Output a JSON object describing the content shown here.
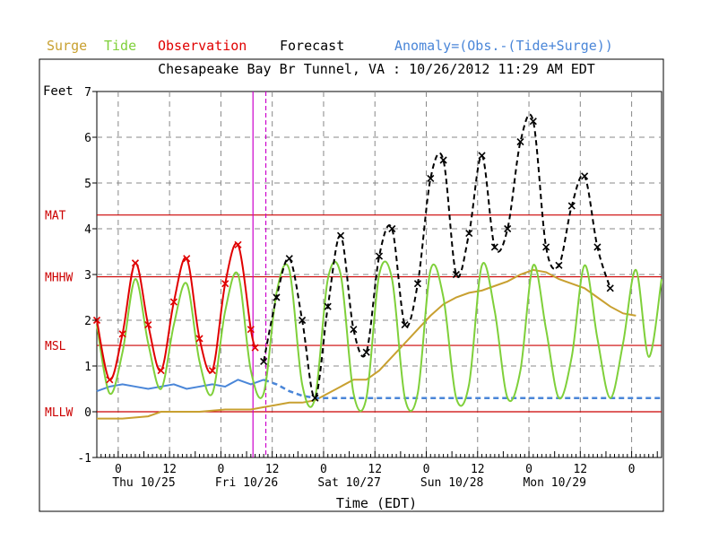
{
  "legend": {
    "surge": "Surge",
    "tide": "Tide",
    "observation": "Observation",
    "forecast": "Forecast",
    "anomaly": "Anomaly=(Obs.-(Tide+Surge))"
  },
  "colors": {
    "surge": "#c8a030",
    "tide": "#7fd03a",
    "observation": "#e00000",
    "forecast": "#000000",
    "anomaly": "#4a86d8",
    "datum": "#cc0000",
    "marker": "#cc00cc"
  },
  "chart_data": {
    "type": "line",
    "title": "Chesapeake Bay Br Tunnel, VA : 10/26/2012 11:29 AM EDT",
    "xlabel": "Time (EDT)",
    "ylabel": "Feet",
    "ylim": [
      -1,
      7
    ],
    "xlim_hours": [
      0,
      132
    ],
    "y_ticks": [
      -1,
      0,
      1,
      2,
      3,
      4,
      5,
      6,
      7
    ],
    "x_tick_labels": [
      {
        "h": 5,
        "label": "0"
      },
      {
        "h": 17,
        "label": "12"
      },
      {
        "h": 29,
        "label": "0"
      },
      {
        "h": 41,
        "label": "12"
      },
      {
        "h": 53,
        "label": "0"
      },
      {
        "h": 65,
        "label": "12"
      },
      {
        "h": 77,
        "label": "0"
      },
      {
        "h": 89,
        "label": "12"
      },
      {
        "h": 101,
        "label": "0"
      },
      {
        "h": 113,
        "label": "12"
      },
      {
        "h": 125,
        "label": "0"
      }
    ],
    "day_labels": [
      {
        "h": 11,
        "label": "Thu 10/25"
      },
      {
        "h": 35,
        "label": "Fri 10/26"
      },
      {
        "h": 59,
        "label": "Sat 10/27"
      },
      {
        "h": 83,
        "label": "Sun 10/28"
      },
      {
        "h": 107,
        "label": "Mon 10/29"
      }
    ],
    "datums": [
      {
        "name": "MAT",
        "value": 4.3
      },
      {
        "name": "MHHW",
        "value": 2.95
      },
      {
        "name": "MSL",
        "value": 1.45
      },
      {
        "name": "MLLW",
        "value": 0.0
      }
    ],
    "now_markers_h": [
      36.5,
      39.5
    ],
    "series": [
      {
        "name": "Tide",
        "x": [
          0,
          3,
          6,
          9,
          12,
          15,
          18,
          21,
          24,
          27,
          30,
          33,
          36,
          39,
          42,
          45,
          48,
          51,
          54,
          57,
          60,
          63,
          66,
          69,
          72,
          75,
          78,
          81,
          84,
          87,
          90,
          93,
          96,
          99,
          102,
          105,
          108,
          111,
          114,
          117,
          120,
          123,
          126,
          129,
          132
        ],
        "y": [
          1.9,
          0.4,
          1.3,
          2.9,
          1.5,
          0.5,
          1.9,
          2.8,
          1.1,
          0.4,
          2.2,
          3.0,
          0.9,
          0.4,
          2.6,
          3.1,
          0.6,
          0.3,
          2.9,
          3.0,
          0.4,
          0.3,
          3.0,
          2.9,
          0.3,
          0.4,
          3.1,
          2.5,
          0.3,
          0.6,
          3.2,
          2.2,
          0.3,
          0.9,
          3.2,
          1.8,
          0.3,
          1.2,
          3.2,
          1.6,
          0.3,
          1.5,
          3.1,
          1.2,
          2.9
        ]
      },
      {
        "name": "Observation",
        "x": [
          0,
          3,
          6,
          9,
          12,
          15,
          18,
          21,
          24,
          27,
          30,
          33,
          36,
          37
        ],
        "y": [
          2.0,
          0.7,
          1.7,
          3.25,
          1.9,
          0.9,
          2.4,
          3.35,
          1.6,
          0.9,
          2.8,
          3.65,
          1.8,
          1.4
        ]
      },
      {
        "name": "Forecast",
        "x": [
          39,
          42,
          45,
          48,
          51,
          54,
          57,
          60,
          63,
          66,
          69,
          72,
          75,
          78,
          81,
          84,
          87,
          90,
          93,
          96,
          99,
          102,
          105,
          108,
          111,
          114,
          117,
          120,
          123,
          126
        ],
        "y": [
          1.1,
          2.5,
          3.35,
          2.0,
          0.3,
          2.3,
          3.85,
          1.8,
          1.3,
          3.4,
          4.0,
          1.9,
          2.8,
          5.1,
          5.5,
          3.0,
          3.9,
          5.6,
          3.6,
          4.0,
          5.9,
          6.35,
          3.6,
          3.2,
          4.5,
          5.15,
          3.6,
          2.7,
          null,
          null
        ]
      },
      {
        "name": "Anomaly",
        "x": [
          0,
          3,
          6,
          9,
          12,
          15,
          18,
          21,
          24,
          27,
          30,
          33,
          36,
          39,
          42,
          45,
          48,
          51,
          54,
          57,
          60,
          63,
          66,
          69,
          72,
          75,
          78,
          81,
          84,
          87,
          90,
          93,
          96,
          99,
          102,
          105,
          108,
          111,
          114,
          117,
          120,
          123,
          126,
          129,
          132
        ],
        "y": [
          0.45,
          0.55,
          0.6,
          0.55,
          0.5,
          0.55,
          0.6,
          0.5,
          0.55,
          0.6,
          0.55,
          0.7,
          0.6,
          0.7,
          0.6,
          0.45,
          0.35,
          0.3,
          0.3,
          0.3,
          0.3,
          0.3,
          0.3,
          0.3,
          0.3,
          0.3,
          0.3,
          0.3,
          0.3,
          0.3,
          0.3,
          0.3,
          0.3,
          0.3,
          0.3,
          0.3,
          0.3,
          0.3,
          0.3,
          0.3,
          0.3,
          0.3,
          0.3,
          0.3,
          0.3
        ]
      },
      {
        "name": "Surge",
        "x": [
          0,
          6,
          12,
          15,
          18,
          21,
          24,
          30,
          33,
          36,
          39,
          42,
          45,
          48,
          51,
          54,
          57,
          60,
          63,
          66,
          69,
          72,
          75,
          78,
          81,
          84,
          87,
          90,
          93,
          96,
          99,
          102,
          105,
          108,
          111,
          114,
          117,
          120,
          123,
          126
        ],
        "y": [
          -0.15,
          -0.15,
          -0.1,
          0.0,
          0.0,
          0.0,
          0.0,
          0.05,
          0.05,
          0.05,
          0.1,
          0.15,
          0.2,
          0.2,
          0.25,
          0.4,
          0.55,
          0.7,
          0.7,
          0.9,
          1.2,
          1.5,
          1.8,
          2.1,
          2.35,
          2.5,
          2.6,
          2.65,
          2.75,
          2.85,
          3.0,
          3.1,
          3.05,
          2.9,
          2.8,
          2.7,
          2.5,
          2.3,
          2.15,
          2.1
        ]
      }
    ]
  }
}
